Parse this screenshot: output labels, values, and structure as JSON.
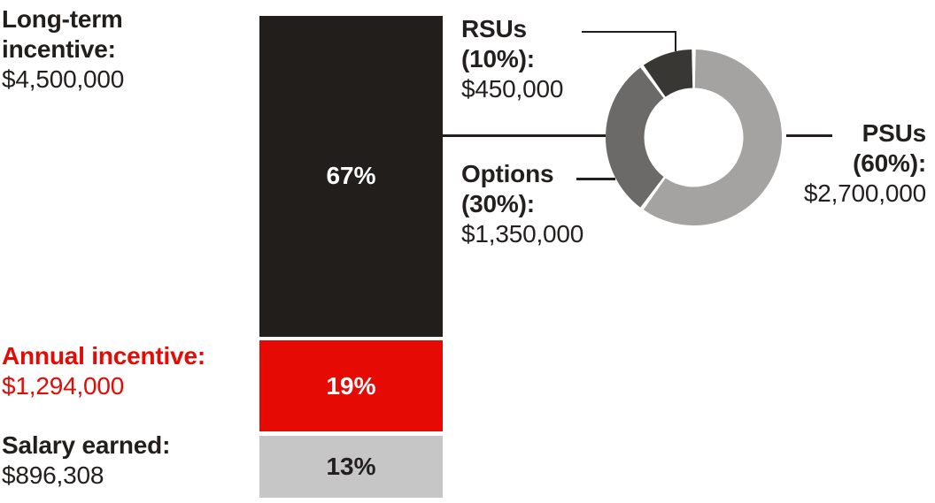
{
  "chart_data": {
    "type": "stacked_bar_with_donut",
    "title": "",
    "background": "#ffffff",
    "line_color": "#221f1e",
    "stacked_bar": {
      "orientation": "vertical",
      "segments": [
        {
          "name": "Long-term incentive",
          "label": "Long-term incentive:",
          "value_label": "$4,500,000",
          "pct": 67,
          "pct_label": "67%",
          "color": "#211e1c",
          "pct_text_color": "#ffffff",
          "label_color": "#211e1c"
        },
        {
          "name": "Annual incentive",
          "label": "Annual incentive:",
          "value_label": "$1,294,000",
          "pct": 19,
          "pct_label": "19%",
          "color": "#e50b04",
          "pct_text_color": "#ffffff",
          "label_color": "#e50b04"
        },
        {
          "name": "Salary earned",
          "label": "Salary earned:",
          "value_label": "$896,308",
          "pct": 13,
          "pct_label": "13%",
          "color": "#c7c6c6",
          "pct_text_color": "#221f1e",
          "label_color": "#211e1c"
        }
      ]
    },
    "donut": {
      "parent": "Long-term incentive",
      "start_angle_deg": 0,
      "direction": "clockwise",
      "segments": [
        {
          "name": "PSUs",
          "label": "PSUs",
          "pct": 60,
          "pct_label": "(60%):",
          "value_label": "$2,700,000",
          "color": "#a4a3a2"
        },
        {
          "name": "Options",
          "label": "Options",
          "pct": 30,
          "pct_label": "(30%):",
          "value_label": "$1,350,000",
          "color": "#6b6a68"
        },
        {
          "name": "RSUs",
          "label": "RSUs",
          "pct": 10,
          "pct_label": "(10%):",
          "value_label": "$450,000",
          "color": "#393734"
        }
      ]
    }
  }
}
